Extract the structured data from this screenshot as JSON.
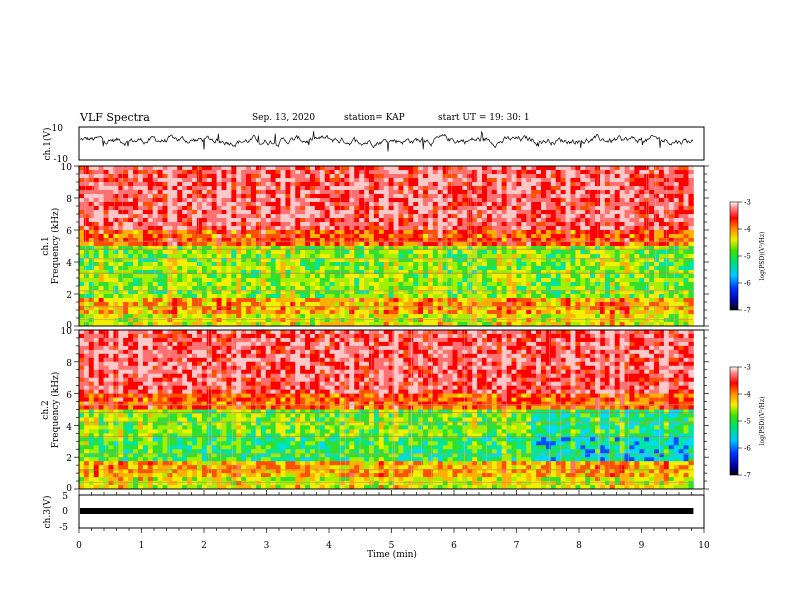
{
  "header": {
    "title": "VLF Spectra",
    "date": "Sep. 13, 2020",
    "station": "station= KAP",
    "start": "start  UT =   19: 30: 1"
  },
  "chart_data": [
    {
      "type": "line",
      "panel": "ch1-waveform",
      "ylabel": "ch.1(V)",
      "ylim": [
        -10,
        10
      ],
      "yticks": [
        10,
        -10
      ],
      "xlim": [
        0,
        10
      ],
      "series": [
        {
          "name": "",
          "mean": 2,
          "amplitude_range": [
            -5,
            8
          ],
          "x_end": 9.83
        }
      ]
    },
    {
      "type": "heatmap",
      "panel": "ch1-spectrogram",
      "ylabel": "ch.1\nFrequency (kHz)",
      "ylim": [
        0,
        10
      ],
      "yticks": [
        "0",
        "2",
        "4",
        "6",
        "8",
        "10"
      ],
      "xlim": [
        0,
        10
      ],
      "x_end": 9.83,
      "colorbar": {
        "label": "log(PSD)(V²/Hz)",
        "range": [
          -7,
          -3
        ],
        "ticks": [
          "-3",
          "-4",
          "-5",
          "-6",
          "-7"
        ]
      }
    },
    {
      "type": "heatmap",
      "panel": "ch2-spectrogram",
      "ylabel": "ch.2\nFrequency (kHz)",
      "ylim": [
        0,
        10
      ],
      "yticks": [
        "0",
        "2",
        "4",
        "6",
        "8",
        "10"
      ],
      "xlim": [
        0,
        10
      ],
      "x_end": 9.83,
      "colorbar": {
        "label": "log(PSD)(V²/Hz)",
        "range": [
          -7,
          -3
        ],
        "ticks": [
          "-3",
          "-4",
          "-5",
          "-6",
          "-7"
        ]
      }
    },
    {
      "type": "line",
      "panel": "ch3-waveform",
      "ylabel": "ch.3(V)",
      "ylim": [
        -5,
        5
      ],
      "yticks": [
        "5",
        "0",
        "-5"
      ],
      "xlim": [
        0,
        10
      ],
      "xlabel": "Time (min)",
      "xticks": [
        "0",
        "1",
        "2",
        "3",
        "4",
        "5",
        "6",
        "7",
        "8",
        "9",
        "10"
      ],
      "series": [
        {
          "name": "",
          "value": 0,
          "x_end": 9.83
        }
      ]
    }
  ]
}
